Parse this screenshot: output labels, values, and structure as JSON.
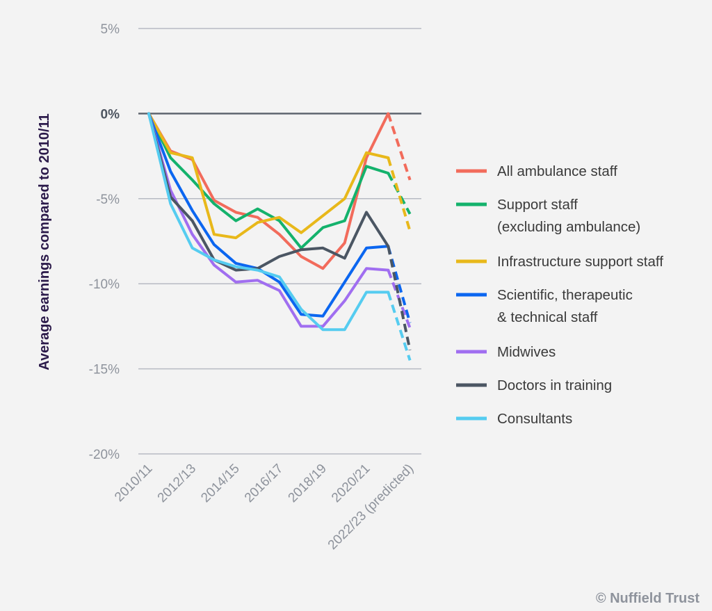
{
  "chart_data": {
    "type": "line",
    "ylabel": "Average earnings compared to 2010/11",
    "xlabel": "",
    "ylim": [
      -20,
      5
    ],
    "yticks": [
      {
        "value": 5,
        "label": "5%"
      },
      {
        "value": 0,
        "label": "0%"
      },
      {
        "value": -5,
        "label": "-5%"
      },
      {
        "value": -10,
        "label": "-10%"
      },
      {
        "value": -15,
        "label": "-15%"
      },
      {
        "value": -20,
        "label": "-20%"
      }
    ],
    "x": [
      "2010/11",
      "2011/12",
      "2012/13",
      "2013/14",
      "2014/15",
      "2015/16",
      "2016/17",
      "2017/18",
      "2018/19",
      "2019/20",
      "2020/21",
      "2021/22",
      "2022/23 (predicted)"
    ],
    "xticks": [
      {
        "index": 0,
        "label": "2010/11"
      },
      {
        "index": 2,
        "label": "2012/13"
      },
      {
        "index": 4,
        "label": "2014/15"
      },
      {
        "index": 6,
        "label": "2016/17"
      },
      {
        "index": 8,
        "label": "2018/19"
      },
      {
        "index": 10,
        "label": "2020/21"
      },
      {
        "index": 12,
        "label": "2022/23 (predicted)"
      }
    ],
    "predicted_from_index": 11,
    "grid": true,
    "legend_position": "right",
    "series": [
      {
        "name": "All ambulance staff",
        "color": "#f26b5b",
        "values": [
          0,
          -2.2,
          -2.7,
          -5.1,
          -5.8,
          -6.1,
          -7.1,
          -8.4,
          -9.1,
          -7.6,
          -2.6,
          0.0,
          -3.9
        ]
      },
      {
        "name": "Support staff (excluding ambulance)",
        "legend_lines": [
          "Support staff",
          "(excluding ambulance)"
        ],
        "color": "#14b26c",
        "values": [
          0,
          -2.6,
          -3.9,
          -5.3,
          -6.3,
          -5.6,
          -6.3,
          -7.9,
          -6.7,
          -6.3,
          -3.1,
          -3.5,
          -5.9
        ]
      },
      {
        "name": "Infrastructure support staff",
        "color": "#e8b81a",
        "values": [
          0,
          -2.3,
          -2.6,
          -7.1,
          -7.3,
          -6.4,
          -6.1,
          -7.0,
          -6.0,
          -5.0,
          -2.3,
          -2.6,
          -6.9
        ]
      },
      {
        "name": "Scientific, therapeutic & technical staff",
        "legend_lines": [
          "Scientific, therapeutic",
          "& technical staff"
        ],
        "color": "#0b66f0",
        "values": [
          0,
          -3.4,
          -5.7,
          -7.7,
          -8.8,
          -9.1,
          -9.9,
          -11.8,
          -11.9,
          -9.9,
          -7.9,
          -7.8,
          -12.3
        ]
      },
      {
        "name": "Midwives",
        "color": "#a06ef0",
        "values": [
          0,
          -4.5,
          -7.1,
          -8.9,
          -9.9,
          -9.8,
          -10.4,
          -12.5,
          -12.5,
          -11.0,
          -9.1,
          -9.2,
          -12.6
        ]
      },
      {
        "name": "Doctors in training",
        "color": "#4b5663",
        "values": [
          0,
          -4.9,
          -6.3,
          -8.6,
          -9.2,
          -9.1,
          -8.4,
          -8.0,
          -7.9,
          -8.5,
          -5.8,
          -7.8,
          -13.9
        ]
      },
      {
        "name": "Consultants",
        "color": "#55ccf0",
        "values": [
          0,
          -5.3,
          -7.9,
          -8.6,
          -9.0,
          -9.2,
          -9.6,
          -11.5,
          -12.7,
          -12.7,
          -10.5,
          -10.5,
          -14.5
        ]
      }
    ]
  },
  "copyright": "© Nuffield Trust"
}
